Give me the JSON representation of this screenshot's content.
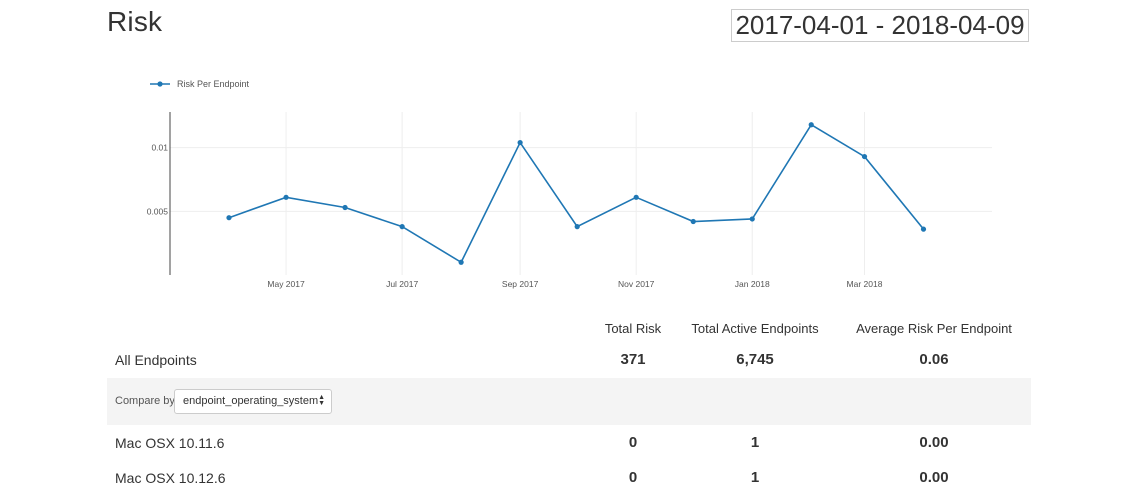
{
  "page": {
    "title": "Risk",
    "date_range": "2017-04-01 - 2018-04-09"
  },
  "chart_data": {
    "type": "line",
    "legend": [
      "Risk Per Endpoint"
    ],
    "series": [
      {
        "name": "Risk Per Endpoint",
        "color": "#1f77b4",
        "x": [
          "2017-04-01",
          "2017-05-01",
          "2017-06-01",
          "2017-07-01",
          "2017-08-01",
          "2017-09-01",
          "2017-10-01",
          "2017-11-01",
          "2017-12-01",
          "2018-01-01",
          "2018-02-01",
          "2018-03-01",
          "2018-04-01"
        ],
        "values": [
          0.0045,
          0.0061,
          0.0053,
          0.0038,
          0.001,
          0.0104,
          0.0038,
          0.0061,
          0.0042,
          0.0044,
          0.0118,
          0.0093,
          0.0036
        ]
      }
    ],
    "x_tick_labels": [
      "May 2017",
      "Jul 2017",
      "Sep 2017",
      "Nov 2017",
      "Jan 2018",
      "Mar 2018"
    ],
    "x_tick_dates": [
      "2017-05-01",
      "2017-07-01",
      "2017-09-01",
      "2017-11-01",
      "2018-01-01",
      "2018-03-01"
    ],
    "y_tick_labels": [
      "0.005",
      "0.01"
    ],
    "y_tick_values": [
      0.005,
      0.01
    ],
    "xlim": [
      "2017-03-01",
      "2018-05-07"
    ],
    "ylim": [
      0,
      0.0128
    ],
    "grid": true,
    "legend_position": "top-left"
  },
  "table": {
    "headers": [
      "Total Risk",
      "Total Active Endpoints",
      "Average Risk Per Endpoint"
    ],
    "summary": {
      "label": "All Endpoints",
      "values": [
        "371",
        "6,745",
        "0.06"
      ]
    },
    "compare": {
      "label": "Compare by",
      "selected": "endpoint_operating_system"
    },
    "rows": [
      {
        "label": "Mac OSX 10.11.6",
        "values": [
          "0",
          "1",
          "0.00"
        ]
      },
      {
        "label": "Mac OSX 10.12.6",
        "values": [
          "0",
          "1",
          "0.00"
        ]
      }
    ]
  },
  "icons": {
    "select": "updown-arrows-icon"
  }
}
